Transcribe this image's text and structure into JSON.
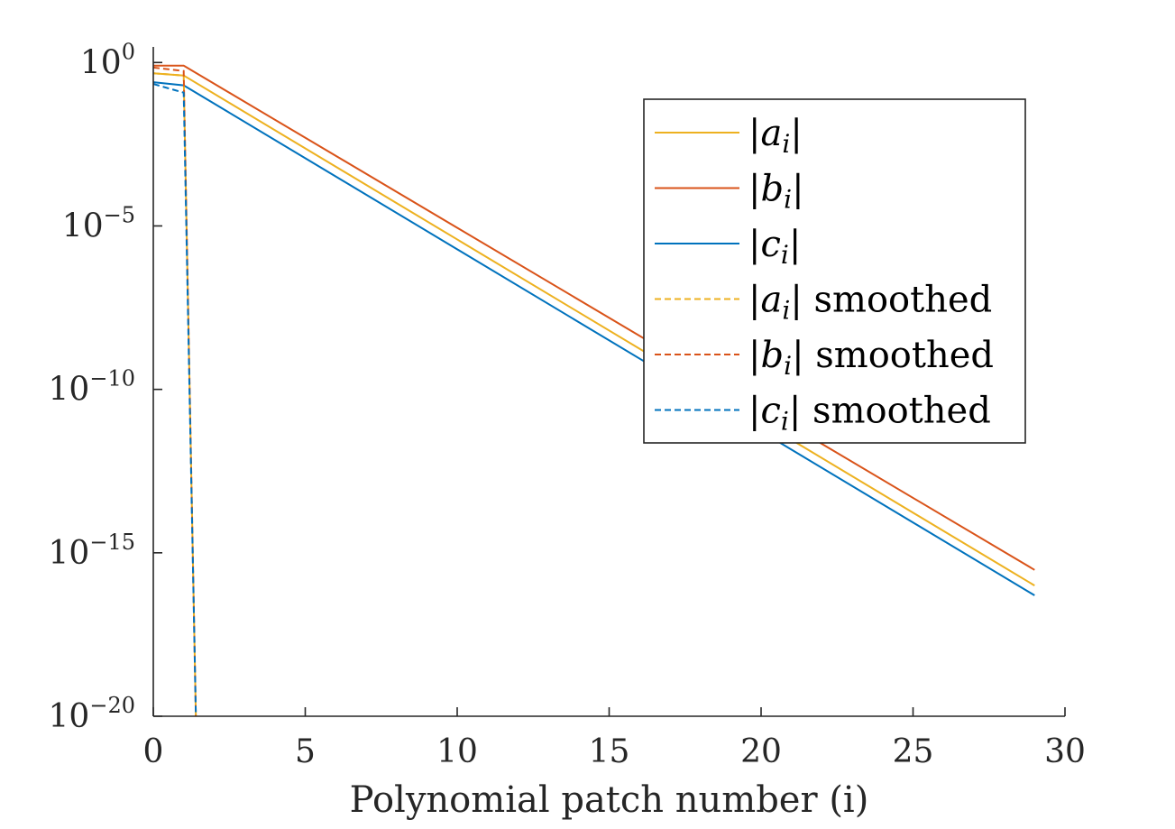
{
  "chart_data": {
    "type": "line",
    "title": "",
    "xlabel": "Polynomial patch number (i)",
    "ylabel": "",
    "xlim": [
      0,
      30
    ],
    "ylim": [
      1e-20,
      3
    ],
    "yscale": "log",
    "grid": false,
    "legend_position": "top-right",
    "x_ticks": [
      0,
      5,
      10,
      15,
      20,
      25,
      30
    ],
    "y_ticks": [
      {
        "value": 1e-20,
        "base": "10",
        "exponent": "−20"
      },
      {
        "value": 1e-15,
        "base": "10",
        "exponent": "−15"
      },
      {
        "value": 1e-10,
        "base": "10",
        "exponent": "−10"
      },
      {
        "value": 1e-05,
        "base": "10",
        "exponent": "−5"
      },
      {
        "value": 1,
        "base": "10",
        "exponent": "0"
      }
    ],
    "series": [
      {
        "name": "|a_i|",
        "legend_var": "a",
        "legend_suffix": "",
        "color": "#EDB120",
        "dash": "solid",
        "x": [
          0,
          1,
          29
        ],
        "y": [
          0.47,
          0.4,
          1e-16
        ]
      },
      {
        "name": "|b_i|",
        "legend_var": "b",
        "legend_suffix": "",
        "color": "#D95319",
        "dash": "solid",
        "x": [
          0,
          1,
          29
        ],
        "y": [
          0.8,
          0.8,
          3e-16
        ]
      },
      {
        "name": "|c_i|",
        "legend_var": "c",
        "legend_suffix": "",
        "color": "#0072BD",
        "dash": "solid",
        "x": [
          0,
          1,
          29
        ],
        "y": [
          0.25,
          0.2,
          5e-17
        ]
      },
      {
        "name": "|a_i| smoothed",
        "legend_var": "a",
        "legend_suffix": "smoothed",
        "color": "#EDB120",
        "dash": "dashed",
        "x": [
          0,
          1,
          1.4
        ],
        "y": [
          0.47,
          0.4,
          1e-20
        ]
      },
      {
        "name": "|b_i| smoothed",
        "legend_var": "b",
        "legend_suffix": "smoothed",
        "color": "#D95319",
        "dash": "dashed",
        "x": [
          0,
          1,
          1.4
        ],
        "y": [
          0.7,
          0.55,
          1e-20
        ]
      },
      {
        "name": "|c_i| smoothed",
        "legend_var": "c",
        "legend_suffix": "smoothed",
        "color": "#0072BD",
        "dash": "dashed",
        "x": [
          0,
          1,
          1.4
        ],
        "y": [
          0.22,
          0.12,
          1e-20
        ]
      }
    ]
  }
}
